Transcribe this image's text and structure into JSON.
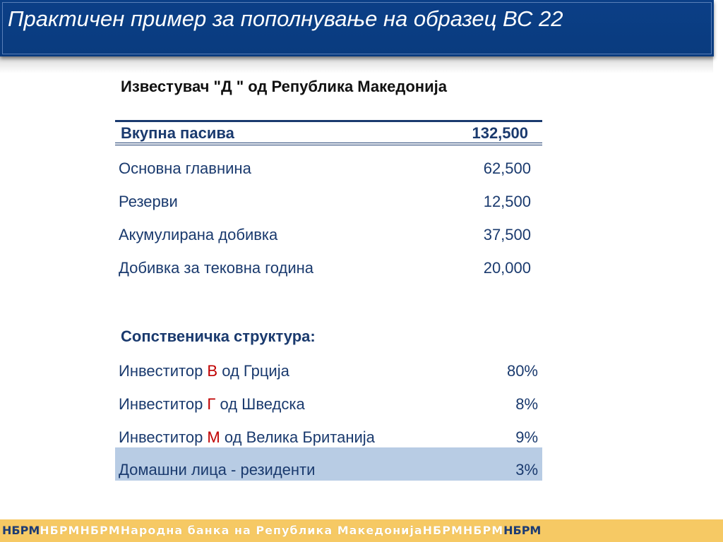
{
  "title": "Практичен пример за пополнување на образец ВС 22",
  "reporter_heading": "Известувач  \"Д \"  од Република Македонија",
  "total": {
    "label": "Вкупна пасива",
    "value": "132,500"
  },
  "items": [
    {
      "label": "Основна главнина",
      "value": "62,500"
    },
    {
      "label": "Резерви",
      "value": "12,500"
    },
    {
      "label": "Акумулирана добивка",
      "value": "37,500"
    },
    {
      "label": "Добивка за тековна година",
      "value": "20,000"
    }
  ],
  "ownership": {
    "heading": "Сопственичка структура:",
    "rows": [
      {
        "prefix": "Инвеститор ",
        "letter": "В",
        "suffix": " од Грција",
        "value": "80%"
      },
      {
        "prefix": "Инвеститор ",
        "letter": "Г",
        "suffix": " од Шведска",
        "value": "8%"
      },
      {
        "prefix": "Инвеститор ",
        "letter": "М",
        "suffix": " од Велика Британија",
        "value": "9%"
      },
      {
        "prefix": "Домашни лица - резиденти",
        "letter": "",
        "suffix": "",
        "value": "3%"
      }
    ]
  },
  "footer": {
    "start": "НБРМ",
    "middle_a": "НБРМНБРМ",
    "center": "Народна банка на Република Македонија",
    "middle_b": "НБРМНБРМ",
    "end": "НБРМ"
  },
  "colors": {
    "title_bar": "#0b3f87",
    "text_blue": "#1a3a6e",
    "highlight_letter": "#c00000",
    "highlight_row": "#b8cce4",
    "footer_bg": "#f6c964"
  }
}
